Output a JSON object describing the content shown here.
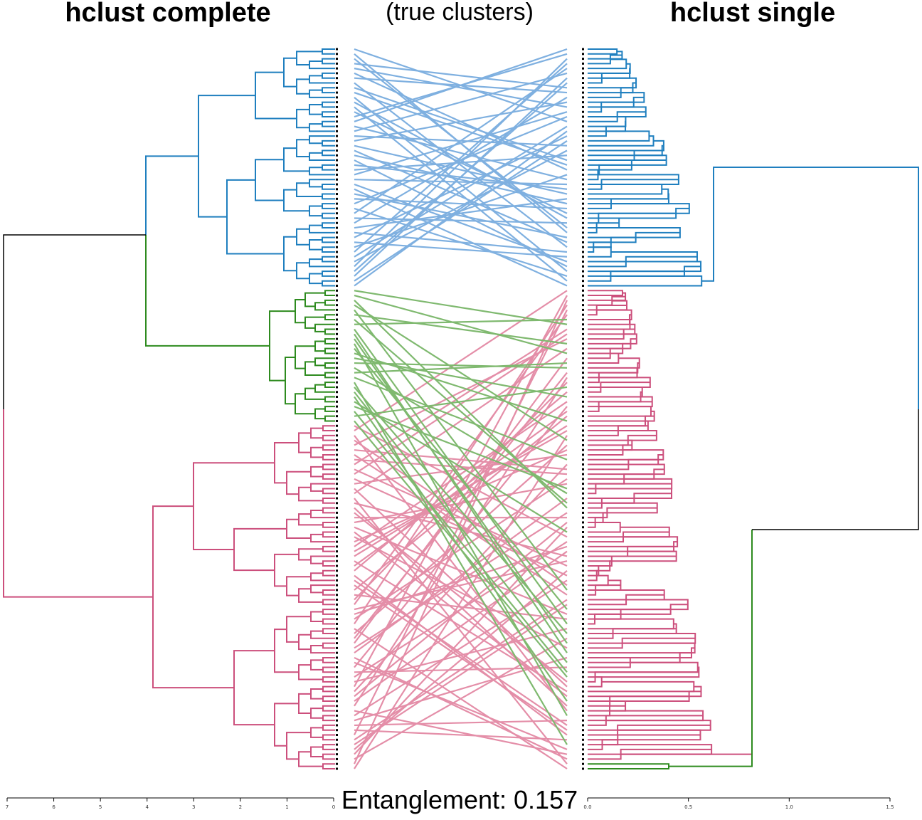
{
  "titles": {
    "left": "hclust complete",
    "middle": "(true clusters)",
    "right": "hclust single"
  },
  "footer": {
    "entanglement_text": "Entanglement: 0.157"
  },
  "colors": {
    "blue": "#1f7fbf",
    "green": "#2e8b1f",
    "pink": "#cc4f7c",
    "root": "#000000",
    "conn_blue": "#7fb0e0",
    "conn_green": "#7fb96f",
    "conn_pink": "#e48ea8"
  },
  "axes": {
    "left": {
      "ticks": [
        "7",
        "6",
        "5",
        "4",
        "3",
        "2",
        "1",
        "0"
      ],
      "range": [
        7,
        0
      ]
    },
    "right": {
      "ticks": [
        "0.0",
        "0.5",
        "1.0",
        "1.5"
      ],
      "range": [
        0,
        1.5
      ]
    }
  },
  "clusters": {
    "leaf_count": 150,
    "blue_leaves": 50,
    "green_leaves": 28,
    "pink_leaves": 72
  }
}
